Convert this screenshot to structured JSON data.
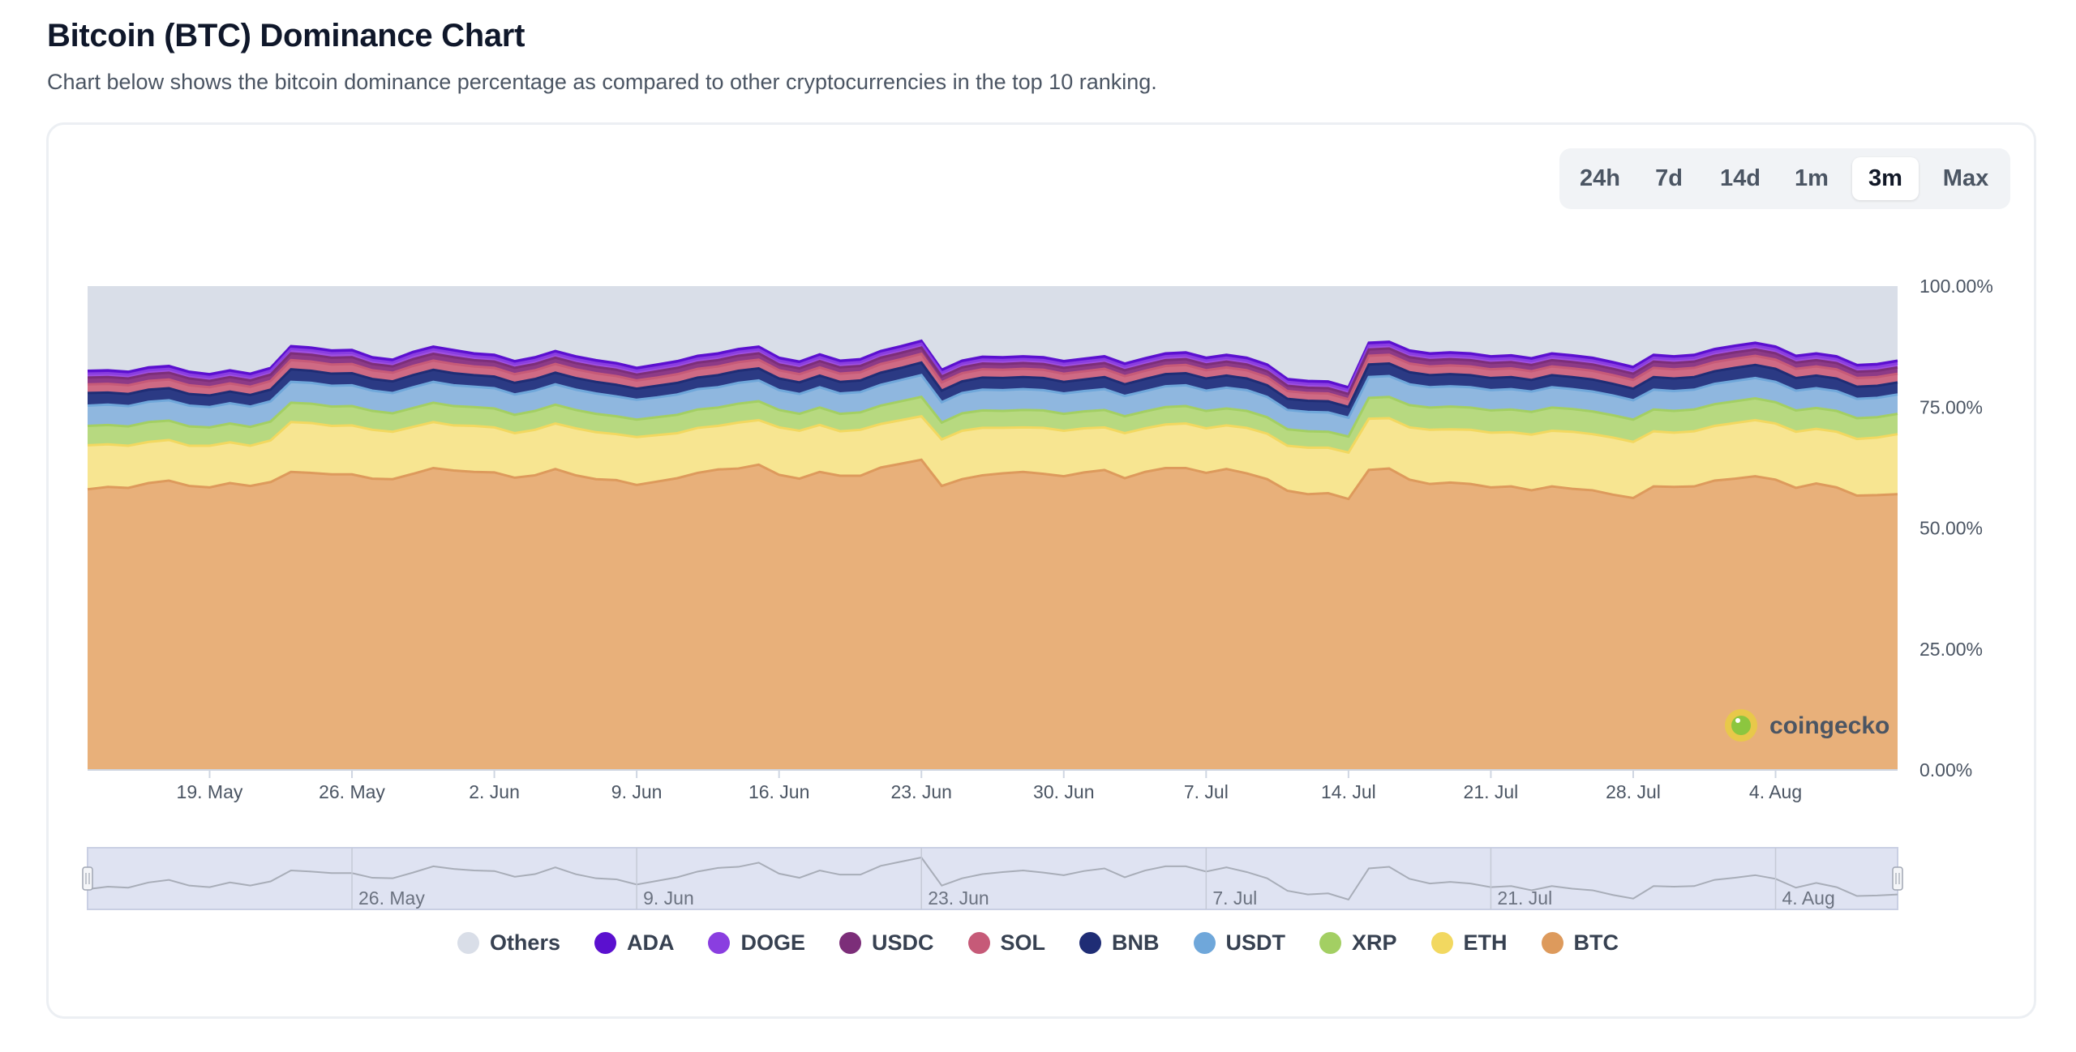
{
  "header": {
    "title": "Bitcoin (BTC) Dominance Chart",
    "subtitle": "Chart below shows the bitcoin dominance percentage as compared to other cryptocurrencies in the top 10 ranking."
  },
  "range_selector": {
    "options": [
      "24h",
      "7d",
      "14d",
      "1m",
      "3m",
      "Max"
    ],
    "active": "3m"
  },
  "watermark": {
    "text": "coingecko"
  },
  "navigator": {
    "labels": [
      "26. May",
      "9. Jun",
      "23. Jun",
      "7. Jul",
      "21. Jul",
      "4. Aug"
    ]
  },
  "colors": {
    "BTC": "#e8b07a",
    "BTC_line": "#dd9a5c",
    "ETH": "#f7e591",
    "ETH_line": "#f2d860",
    "XRP": "#b7d980",
    "XRP_line": "#a3cf63",
    "USDT": "#8fb7df",
    "USDT_line": "#6fa7da",
    "BNB": "#2b3a84",
    "BNB_line": "#1f2d75",
    "SOL": "#cf6a84",
    "SOL_line": "#c65a78",
    "USDC": "#8d3a87",
    "USDC_line": "#7c2e79",
    "DOGE": "#9f4fe0",
    "DOGE_line": "#8a3ee0",
    "ADA": "#6515d6",
    "ADA_line": "#5b10cf",
    "Others": "#d9dee8"
  },
  "chart_data": {
    "type": "area",
    "stacked": true,
    "title": "Bitcoin (BTC) Dominance Chart",
    "x": [
      "13 May",
      "14 May",
      "15 May",
      "16 May",
      "17 May",
      "18 May",
      "19 May",
      "20 May",
      "21 May",
      "22 May",
      "23 May",
      "24 May",
      "25 May",
      "26 May",
      "27 May",
      "28 May",
      "29 May",
      "30 May",
      "31 May",
      "1 Jun",
      "2 Jun",
      "3 Jun",
      "4 Jun",
      "5 Jun",
      "6 Jun",
      "7 Jun",
      "8 Jun",
      "9 Jun",
      "10 Jun",
      "11 Jun",
      "12 Jun",
      "13 Jun",
      "14 Jun",
      "15 Jun",
      "16 Jun",
      "17 Jun",
      "18 Jun",
      "19 Jun",
      "20 Jun",
      "21 Jun",
      "22 Jun",
      "23 Jun",
      "24 Jun",
      "25 Jun",
      "26 Jun",
      "27 Jun",
      "28 Jun",
      "29 Jun",
      "30 Jun",
      "1 Jul",
      "2 Jul",
      "3 Jul",
      "4 Jul",
      "5 Jul",
      "6 Jul",
      "7 Jul",
      "8 Jul",
      "9 Jul",
      "10 Jul",
      "11 Jul",
      "12 Jul",
      "13 Jul",
      "14 Jul",
      "15 Jul",
      "16 Jul",
      "17 Jul",
      "18 Jul",
      "19 Jul",
      "20 Jul",
      "21 Jul",
      "22 Jul",
      "23 Jul",
      "24 Jul",
      "25 Jul",
      "26 Jul",
      "27 Jul",
      "28 Jul",
      "29 Jul",
      "30 Jul",
      "31 Jul",
      "1 Aug",
      "2 Aug",
      "3 Aug",
      "4 Aug",
      "5 Aug",
      "6 Aug",
      "7 Aug",
      "8 Aug",
      "9 Aug",
      "10 Aug"
    ],
    "x_ticks": [
      "19. May",
      "26. May",
      "2. Jun",
      "9. Jun",
      "16. Jun",
      "23. Jun",
      "30. Jun",
      "7. Jul",
      "14. Jul",
      "21. Jul",
      "28. Jul",
      "4. Aug"
    ],
    "x_tick_days": [
      6,
      13,
      20,
      27,
      34,
      41,
      48,
      55,
      62,
      69,
      76,
      83
    ],
    "y_ticks": [
      "0.00%",
      "25.00%",
      "50.00%",
      "75.00%",
      "100.00%"
    ],
    "ylim": [
      0,
      100
    ],
    "series": [
      {
        "name": "BTC",
        "values": [
          58.0,
          58.5,
          58.3,
          59.3,
          59.8,
          58.7,
          58.4,
          59.3,
          58.7,
          59.5,
          61.6,
          61.4,
          61.1,
          61.1,
          60.2,
          60.1,
          61.2,
          62.4,
          61.9,
          61.6,
          61.5,
          60.4,
          60.9,
          62.2,
          60.9,
          60.1,
          59.9,
          58.9,
          59.6,
          60.3,
          61.4,
          62.1,
          62.3,
          63.1,
          61.0,
          60.2,
          61.6,
          60.8,
          60.8,
          62.5,
          63.3,
          64.1,
          58.7,
          60.1,
          60.9,
          61.3,
          61.6,
          61.2,
          60.7,
          61.5,
          62.0,
          60.3,
          61.6,
          62.4,
          62.4,
          61.4,
          62.2,
          61.3,
          60.1,
          57.7,
          57.0,
          57.2,
          56.0,
          62.0,
          62.3,
          60.0,
          59.1,
          59.4,
          59.1,
          58.4,
          58.6,
          57.8,
          58.6,
          58.1,
          57.8,
          56.9,
          56.2,
          58.6,
          58.5,
          58.6,
          59.8,
          60.2,
          60.7,
          60.0,
          58.3,
          59.2,
          58.4,
          56.7,
          56.8,
          57.0
        ]
      },
      {
        "name": "ETH",
        "values": [
          9.1,
          8.8,
          8.7,
          8.5,
          8.4,
          8.3,
          8.6,
          8.4,
          8.3,
          8.6,
          10.3,
          10.3,
          10.0,
          10.1,
          10.1,
          9.8,
          9.7,
          9.5,
          9.3,
          9.5,
          9.3,
          9.2,
          9.4,
          9.4,
          9.7,
          9.7,
          9.5,
          9.9,
          9.6,
          9.3,
          9.3,
          9.0,
          9.5,
          9.2,
          9.8,
          9.9,
          9.7,
          9.2,
          9.5,
          9.0,
          9.0,
          9.0,
          9.6,
          10.0,
          9.8,
          9.4,
          9.2,
          9.5,
          9.4,
          9.1,
          8.8,
          9.3,
          9.0,
          9.0,
          9.2,
          9.2,
          9.0,
          9.4,
          9.4,
          9.3,
          9.6,
          9.4,
          9.6,
          10.6,
          10.4,
          10.8,
          11.2,
          11.0,
          11.2,
          11.3,
          11.2,
          11.5,
          11.5,
          11.8,
          11.6,
          11.8,
          11.6,
          11.4,
          11.2,
          11.4,
          11.3,
          11.5,
          11.6,
          11.6,
          11.6,
          11.3,
          11.5,
          11.7,
          11.9,
          12.4
        ]
      },
      {
        "name": "XRP",
        "values": [
          4.0,
          4.0,
          4.0,
          4.1,
          4.0,
          4.0,
          3.8,
          3.9,
          3.9,
          3.9,
          4.0,
          4.0,
          4.0,
          4.0,
          3.9,
          3.8,
          3.9,
          4.0,
          4.0,
          3.9,
          3.9,
          3.8,
          3.9,
          3.9,
          3.8,
          3.8,
          3.7,
          3.6,
          3.7,
          3.8,
          3.8,
          3.8,
          3.9,
          3.9,
          3.6,
          3.5,
          3.6,
          3.6,
          3.6,
          3.8,
          3.9,
          4.0,
          3.5,
          3.6,
          3.6,
          3.5,
          3.6,
          3.6,
          3.5,
          3.5,
          3.6,
          3.5,
          3.5,
          3.6,
          3.6,
          3.6,
          3.5,
          3.5,
          3.4,
          3.4,
          3.4,
          3.3,
          3.3,
          4.3,
          4.4,
          4.6,
          4.6,
          4.7,
          4.6,
          4.6,
          4.7,
          4.7,
          4.8,
          4.7,
          4.7,
          4.6,
          4.6,
          4.5,
          4.5,
          4.5,
          4.5,
          4.5,
          4.5,
          4.4,
          4.4,
          4.3,
          4.3,
          4.3,
          4.2,
          4.2
        ]
      },
      {
        "name": "USDT",
        "values": [
          4.2,
          4.2,
          4.2,
          4.2,
          4.2,
          4.3,
          4.2,
          4.2,
          4.2,
          4.2,
          4.3,
          4.3,
          4.3,
          4.3,
          4.2,
          4.2,
          4.3,
          4.3,
          4.3,
          4.2,
          4.2,
          4.2,
          4.2,
          4.2,
          4.2,
          4.2,
          4.1,
          4.1,
          4.1,
          4.2,
          4.2,
          4.2,
          4.3,
          4.3,
          4.1,
          4.1,
          4.2,
          4.2,
          4.2,
          4.3,
          4.4,
          4.5,
          4.2,
          4.2,
          4.3,
          4.3,
          4.3,
          4.2,
          4.2,
          4.2,
          4.3,
          4.2,
          4.2,
          4.3,
          4.3,
          4.2,
          4.3,
          4.3,
          4.2,
          4.0,
          4.0,
          4.0,
          3.9,
          4.3,
          4.3,
          4.3,
          4.2,
          4.2,
          4.2,
          4.2,
          4.2,
          4.2,
          4.2,
          4.1,
          4.1,
          4.1,
          4.0,
          4.1,
          4.1,
          4.1,
          4.2,
          4.2,
          4.2,
          4.2,
          4.1,
          4.1,
          4.1,
          4.0,
          4.0,
          4.0
        ]
      },
      {
        "name": "BNB",
        "values": [
          2.6,
          2.5,
          2.5,
          2.5,
          2.5,
          2.4,
          2.4,
          2.4,
          2.4,
          2.4,
          2.6,
          2.5,
          2.5,
          2.5,
          2.4,
          2.4,
          2.5,
          2.5,
          2.5,
          2.4,
          2.4,
          2.4,
          2.4,
          2.4,
          2.4,
          2.4,
          2.4,
          2.3,
          2.4,
          2.4,
          2.4,
          2.5,
          2.5,
          2.5,
          2.4,
          2.4,
          2.4,
          2.4,
          2.4,
          2.5,
          2.5,
          2.6,
          2.4,
          2.4,
          2.5,
          2.5,
          2.5,
          2.5,
          2.4,
          2.4,
          2.5,
          2.4,
          2.5,
          2.5,
          2.5,
          2.5,
          2.5,
          2.4,
          2.4,
          2.3,
          2.3,
          2.3,
          2.2,
          2.6,
          2.6,
          2.5,
          2.5,
          2.5,
          2.5,
          2.5,
          2.5,
          2.4,
          2.5,
          2.5,
          2.5,
          2.4,
          2.4,
          2.6,
          2.6,
          2.6,
          2.6,
          2.7,
          2.7,
          2.7,
          2.6,
          2.6,
          2.6,
          2.5,
          2.5,
          2.5
        ]
      },
      {
        "name": "SOL",
        "values": [
          1.8,
          1.8,
          1.8,
          1.8,
          1.8,
          1.8,
          1.7,
          1.7,
          1.7,
          1.8,
          1.9,
          1.9,
          1.9,
          1.9,
          1.8,
          1.8,
          1.9,
          1.9,
          1.9,
          1.8,
          1.8,
          1.8,
          1.8,
          1.8,
          1.8,
          1.8,
          1.8,
          1.7,
          1.7,
          1.8,
          1.8,
          1.8,
          1.8,
          1.8,
          1.7,
          1.7,
          1.7,
          1.7,
          1.7,
          1.8,
          1.8,
          1.8,
          1.7,
          1.7,
          1.7,
          1.7,
          1.7,
          1.7,
          1.7,
          1.7,
          1.7,
          1.7,
          1.7,
          1.7,
          1.7,
          1.7,
          1.7,
          1.7,
          1.7,
          1.6,
          1.6,
          1.6,
          1.6,
          1.8,
          1.8,
          1.8,
          1.8,
          1.8,
          1.8,
          1.8,
          1.8,
          1.8,
          1.8,
          1.8,
          1.8,
          1.8,
          1.8,
          1.9,
          1.9,
          1.9,
          1.9,
          1.9,
          1.9,
          1.9,
          1.9,
          1.9,
          1.9,
          1.8,
          1.8,
          1.8
        ]
      },
      {
        "name": "USDC",
        "values": [
          1.4,
          1.4,
          1.4,
          1.4,
          1.4,
          1.4,
          1.3,
          1.3,
          1.3,
          1.3,
          1.4,
          1.4,
          1.4,
          1.4,
          1.3,
          1.3,
          1.4,
          1.4,
          1.4,
          1.3,
          1.3,
          1.3,
          1.3,
          1.3,
          1.3,
          1.3,
          1.3,
          1.2,
          1.3,
          1.3,
          1.3,
          1.3,
          1.3,
          1.3,
          1.2,
          1.2,
          1.3,
          1.3,
          1.3,
          1.3,
          1.3,
          1.3,
          1.2,
          1.2,
          1.2,
          1.2,
          1.2,
          1.2,
          1.2,
          1.2,
          1.2,
          1.2,
          1.2,
          1.2,
          1.2,
          1.2,
          1.2,
          1.2,
          1.2,
          1.1,
          1.1,
          1.1,
          1.1,
          1.3,
          1.3,
          1.3,
          1.3,
          1.3,
          1.3,
          1.3,
          1.3,
          1.3,
          1.3,
          1.3,
          1.3,
          1.3,
          1.3,
          1.3,
          1.3,
          1.3,
          1.3,
          1.3,
          1.3,
          1.3,
          1.3,
          1.3,
          1.3,
          1.3,
          1.3,
          1.3
        ]
      },
      {
        "name": "DOGE",
        "values": [
          0.8,
          0.8,
          0.8,
          0.8,
          0.8,
          0.8,
          0.8,
          0.8,
          0.8,
          0.8,
          0.9,
          0.9,
          0.9,
          0.9,
          0.8,
          0.8,
          0.9,
          0.9,
          0.9,
          0.8,
          0.8,
          0.8,
          0.8,
          0.8,
          0.8,
          0.8,
          0.8,
          0.8,
          0.8,
          0.8,
          0.8,
          0.8,
          0.8,
          0.8,
          0.8,
          0.8,
          0.8,
          0.8,
          0.8,
          0.8,
          0.8,
          0.8,
          0.8,
          0.8,
          0.8,
          0.8,
          0.8,
          0.8,
          0.8,
          0.8,
          0.8,
          0.8,
          0.8,
          0.8,
          0.8,
          0.8,
          0.8,
          0.8,
          0.8,
          0.8,
          0.8,
          0.8,
          0.8,
          0.8,
          0.8,
          0.8,
          0.8,
          0.8,
          0.8,
          0.8,
          0.8,
          0.8,
          0.8,
          0.8,
          0.8,
          0.8,
          0.8,
          0.8,
          0.8,
          0.8,
          0.8,
          0.8,
          0.8,
          0.8,
          0.8,
          0.8,
          0.8,
          0.8,
          0.8,
          0.8
        ]
      },
      {
        "name": "ADA",
        "values": [
          0.6,
          0.6,
          0.6,
          0.6,
          0.6,
          0.6,
          0.6,
          0.6,
          0.6,
          0.6,
          0.6,
          0.6,
          0.6,
          0.6,
          0.6,
          0.6,
          0.6,
          0.6,
          0.6,
          0.6,
          0.6,
          0.6,
          0.6,
          0.6,
          0.6,
          0.6,
          0.6,
          0.6,
          0.6,
          0.6,
          0.6,
          0.6,
          0.6,
          0.6,
          0.6,
          0.6,
          0.6,
          0.6,
          0.6,
          0.6,
          0.6,
          0.6,
          0.6,
          0.6,
          0.6,
          0.6,
          0.6,
          0.6,
          0.6,
          0.6,
          0.6,
          0.6,
          0.6,
          0.6,
          0.6,
          0.6,
          0.6,
          0.6,
          0.6,
          0.6,
          0.6,
          0.6,
          0.6,
          0.6,
          0.6,
          0.6,
          0.6,
          0.6,
          0.6,
          0.6,
          0.6,
          0.6,
          0.6,
          0.6,
          0.6,
          0.6,
          0.6,
          0.6,
          0.6,
          0.6,
          0.6,
          0.6,
          0.6,
          0.6,
          0.6,
          0.6,
          0.6,
          0.6,
          0.6,
          0.6
        ]
      },
      {
        "name": "Others",
        "values": "remainder-to-100"
      }
    ],
    "legend": [
      "Others",
      "ADA",
      "DOGE",
      "USDC",
      "SOL",
      "BNB",
      "USDT",
      "XRP",
      "ETH",
      "BTC"
    ],
    "legend_position": "bottom"
  }
}
